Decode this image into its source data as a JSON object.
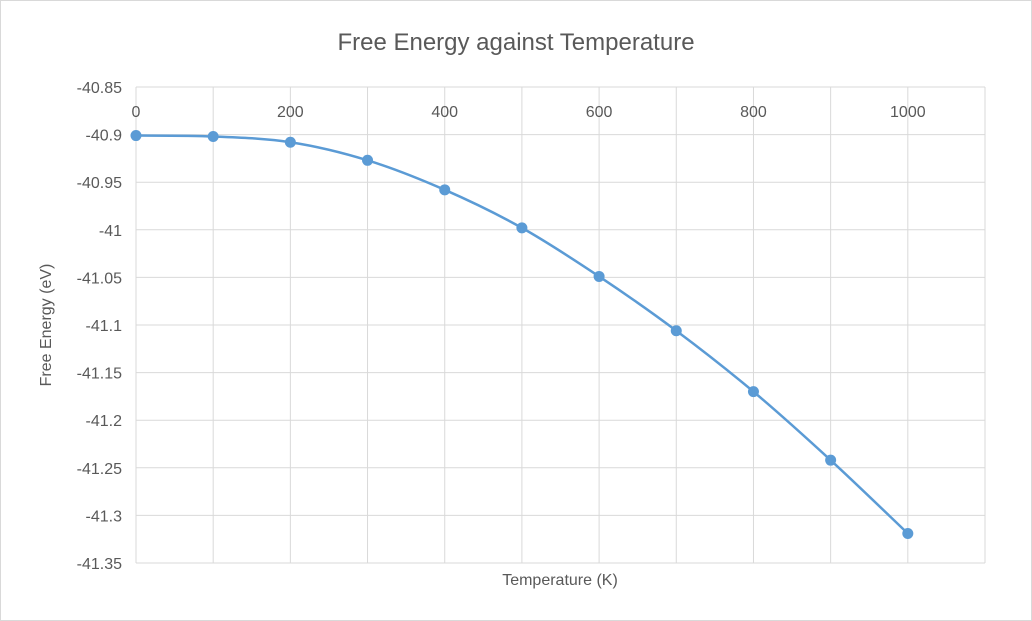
{
  "chart_data": {
    "type": "line",
    "title": "Free Energy against Temperature",
    "xlabel": "Temperature (K)",
    "ylabel": "Free Energy (eV)",
    "x": [
      0,
      100,
      200,
      300,
      400,
      500,
      600,
      700,
      800,
      900,
      1000
    ],
    "series": [
      {
        "name": "Free Energy",
        "values": [
          -40.901,
          -40.902,
          -40.908,
          -40.927,
          -40.958,
          -40.998,
          -41.049,
          -41.106,
          -41.17,
          -41.242,
          -41.319
        ],
        "color": "#5B9BD5",
        "smooth": true,
        "markers": true
      }
    ],
    "xlim": [
      0,
      1100
    ],
    "ylim": [
      -41.35,
      -40.85
    ],
    "xticks": [
      "0",
      "200",
      "400",
      "600",
      "800",
      "1000"
    ],
    "xtick_values": [
      0,
      200,
      400,
      600,
      800,
      1000
    ],
    "x_grid_step": 100,
    "yticks": [
      "-40.85",
      "-40.9",
      "-40.95",
      "-41",
      "-41.05",
      "-41.1",
      "-41.15",
      "-41.2",
      "-41.25",
      "-41.3",
      "-41.35"
    ],
    "ytick_values": [
      -40.85,
      -40.9,
      -40.95,
      -41,
      -41.05,
      -41.1,
      -41.15,
      -41.2,
      -41.25,
      -41.3,
      -41.35
    ],
    "grid": true,
    "x_axis_position": "top",
    "legend": "none"
  }
}
